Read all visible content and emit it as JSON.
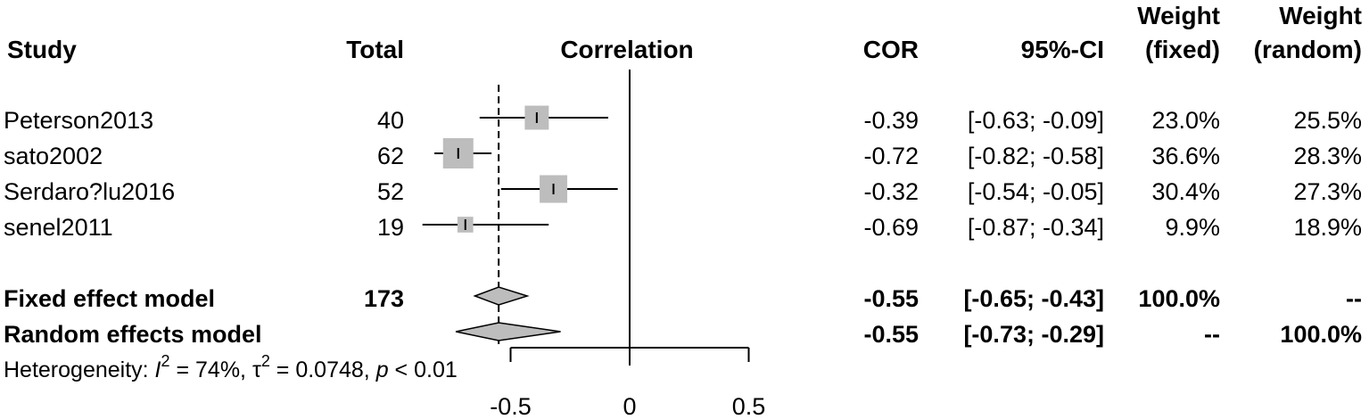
{
  "headers": {
    "study": "Study",
    "total": "Total",
    "correlation": "Correlation",
    "cor": "COR",
    "ci": "95%-CI",
    "weight_fixed_1": "Weight",
    "weight_fixed_2": "(fixed)",
    "weight_random_1": "Weight",
    "weight_random_2": "(random)"
  },
  "studies": [
    {
      "name": "Peterson2013",
      "total": "40",
      "cor": "-0.39",
      "ci": "[-0.63; -0.09]",
      "w_fixed": "23.0%",
      "w_random": "25.5%"
    },
    {
      "name": "sato2002",
      "total": "62",
      "cor": "-0.72",
      "ci": "[-0.82; -0.58]",
      "w_fixed": "36.6%",
      "w_random": "28.3%"
    },
    {
      "name": "Serdaro?lu2016",
      "total": "52",
      "cor": "-0.32",
      "ci": "[-0.54; -0.05]",
      "w_fixed": "30.4%",
      "w_random": "27.3%"
    },
    {
      "name": "senel2011",
      "total": "19",
      "cor": "-0.69",
      "ci": "[-0.87; -0.34]",
      "w_fixed": "9.9%",
      "w_random": "18.9%"
    }
  ],
  "summary": [
    {
      "name": "Fixed effect model",
      "total": "173",
      "cor": "-0.55",
      "ci": "[-0.65; -0.43]",
      "w_fixed": "100.0%",
      "w_random": "--"
    },
    {
      "name": "Random effects model",
      "total": "",
      "cor": "-0.55",
      "ci": "[-0.73; -0.29]",
      "w_fixed": "--",
      "w_random": "100.0%"
    }
  ],
  "heterogeneity": {
    "prefix": "Heterogeneity: ",
    "i_symbol": "I",
    "i_value": " = 74%, ",
    "tau_symbol": "τ",
    "tau_value": " = 0.0748, ",
    "p_symbol": "p",
    "p_value": " < 0.01",
    "superscript": "2"
  },
  "chart_data": {
    "type": "forest",
    "xlim": [
      -0.5,
      0.5
    ],
    "x_ticks": [
      -0.5,
      0,
      0.5
    ],
    "x_tick_labels": [
      "-0.5",
      "0",
      "0.5"
    ],
    "null_value": 0,
    "fixed_effect_reference": -0.55,
    "studies": [
      {
        "name": "Peterson2013",
        "estimate": -0.39,
        "lower": -0.63,
        "upper": -0.09,
        "weight_fixed": 23.0
      },
      {
        "name": "sato2002",
        "estimate": -0.72,
        "lower": -0.82,
        "upper": -0.58,
        "weight_fixed": 36.6
      },
      {
        "name": "Serdaro?lu2016",
        "estimate": -0.32,
        "lower": -0.54,
        "upper": -0.05,
        "weight_fixed": 30.4
      },
      {
        "name": "senel2011",
        "estimate": -0.69,
        "lower": -0.87,
        "upper": -0.34,
        "weight_fixed": 9.9
      }
    ],
    "summary": [
      {
        "name": "Fixed effect model",
        "estimate": -0.55,
        "lower": -0.65,
        "upper": -0.43
      },
      {
        "name": "Random effects model",
        "estimate": -0.55,
        "lower": -0.73,
        "upper": -0.29
      }
    ]
  }
}
